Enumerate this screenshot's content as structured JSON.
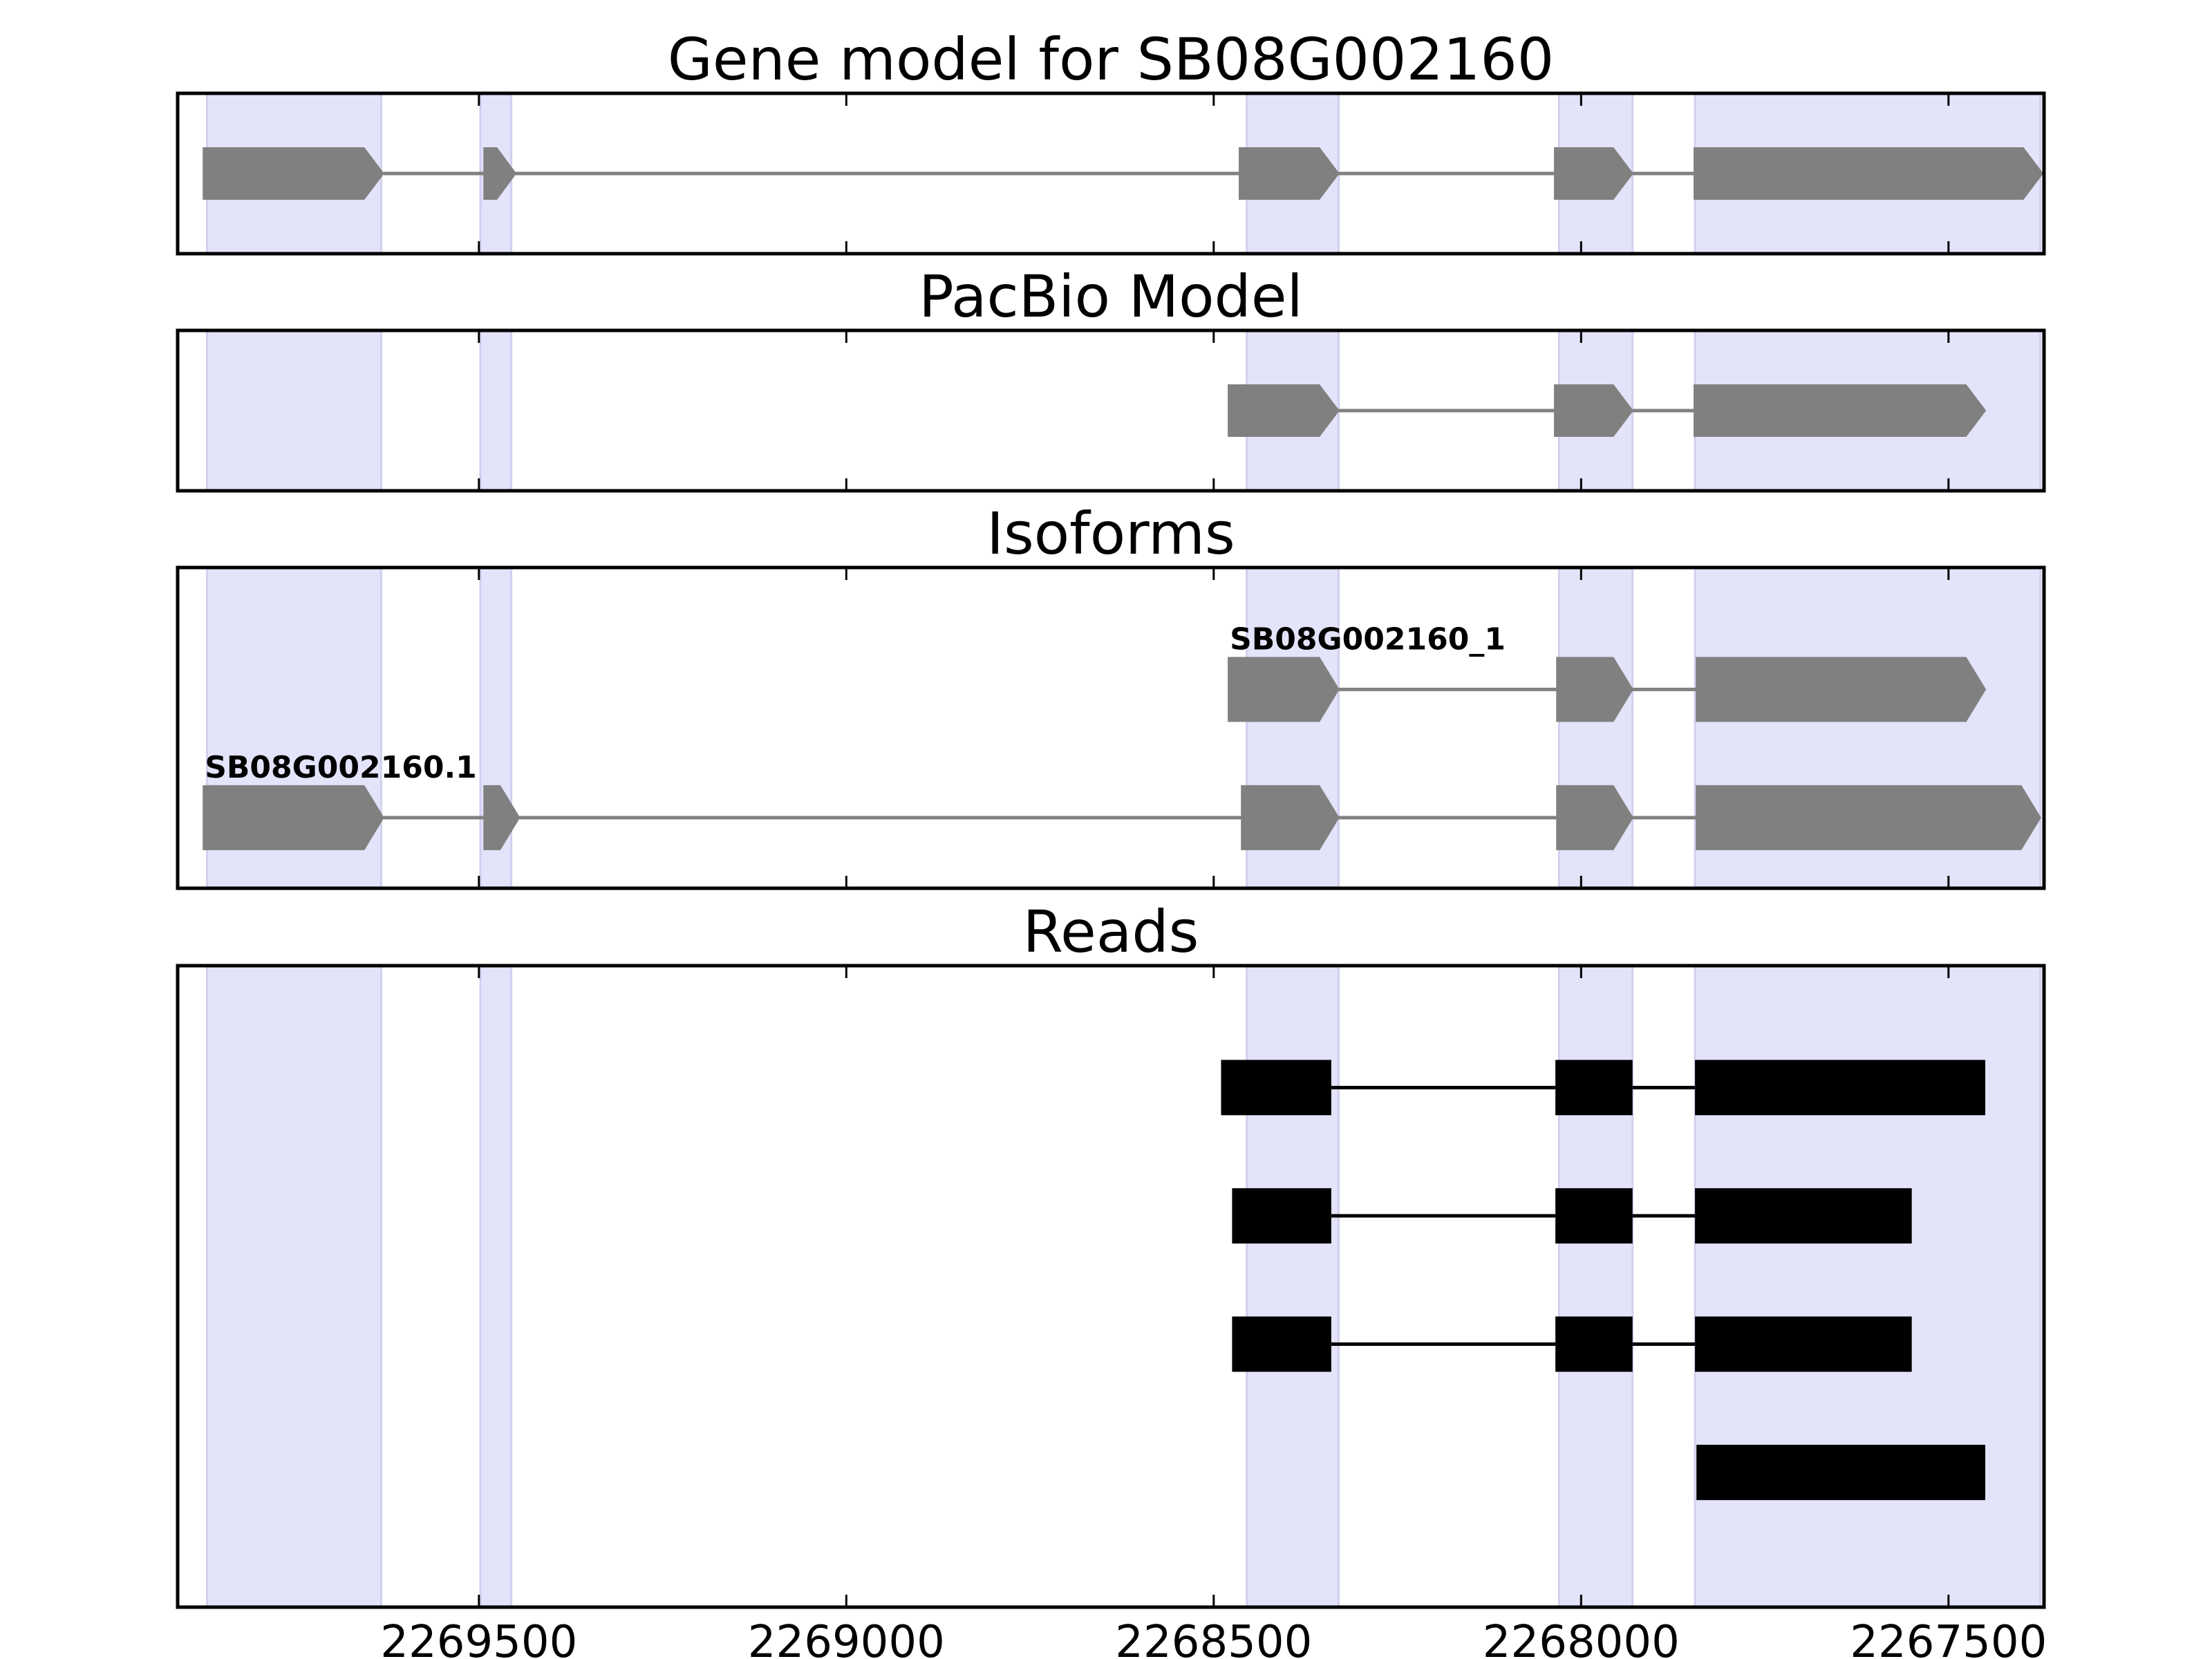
{
  "chart_data": {
    "type": "gene-model-track",
    "x_axis": {
      "reversed": true,
      "range": [
        2269910,
        2267370
      ],
      "ticks": [
        2269500,
        2269000,
        2268500,
        2268000,
        2267500
      ],
      "tick_labels": [
        "2269500",
        "2269000",
        "2268500",
        "2268000",
        "2267500"
      ]
    },
    "exon_shading": {
      "color": "#e3e3fa",
      "regions": [
        [
          2269870,
          2269633
        ],
        [
          2269498,
          2269456
        ],
        [
          2268455,
          2268330
        ],
        [
          2268030,
          2267930
        ],
        [
          2267845,
          2267375
        ]
      ]
    },
    "feature_color": "#808080",
    "read_color": "#000000",
    "panels": [
      {
        "title": "Gene model for SB08G002160",
        "tracks": [
          {
            "y": 0.5,
            "exons": [
              [
                2269875,
                2269630
              ],
              [
                2269493,
                2269450
              ],
              [
                2268465,
                2268330
              ],
              [
                2268036,
                2267930
              ],
              [
                2267846,
                2267372
              ]
            ]
          }
        ]
      },
      {
        "title": "PacBio Model",
        "tracks": [
          {
            "y": 0.5,
            "exons": [
              [
                2268480,
                2268330
              ],
              [
                2268036,
                2267930
              ],
              [
                2267846,
                2267450
              ]
            ]
          }
        ]
      },
      {
        "title": "Isoforms",
        "tracks": [
          {
            "y": 0.62,
            "label": "SB08G002160_1",
            "exons": [
              [
                2268480,
                2268330
              ],
              [
                2268033,
                2267930
              ],
              [
                2267843,
                2267450
              ]
            ]
          },
          {
            "y": 0.22,
            "label": "SB08G002160.1",
            "exons": [
              [
                2269875,
                2269630
              ],
              [
                2269493,
                2269445
              ],
              [
                2268462,
                2268330
              ],
              [
                2268033,
                2267930
              ],
              [
                2267843,
                2267375
              ]
            ]
          }
        ]
      },
      {
        "title": "Reads",
        "tracks": [
          {
            "y": 0.81,
            "exons": [
              [
                2268490,
                2268340
              ],
              [
                2268035,
                2267930
              ],
              [
                2267845,
                2267450
              ]
            ]
          },
          {
            "y": 0.61,
            "exons": [
              [
                2268475,
                2268340
              ],
              [
                2268035,
                2267930
              ],
              [
                2267845,
                2267550
              ]
            ]
          },
          {
            "y": 0.41,
            "exons": [
              [
                2268475,
                2268340
              ],
              [
                2268035,
                2267930
              ],
              [
                2267845,
                2267550
              ]
            ]
          },
          {
            "y": 0.21,
            "exons": [
              [
                2267843,
                2267450
              ]
            ]
          }
        ]
      }
    ]
  }
}
